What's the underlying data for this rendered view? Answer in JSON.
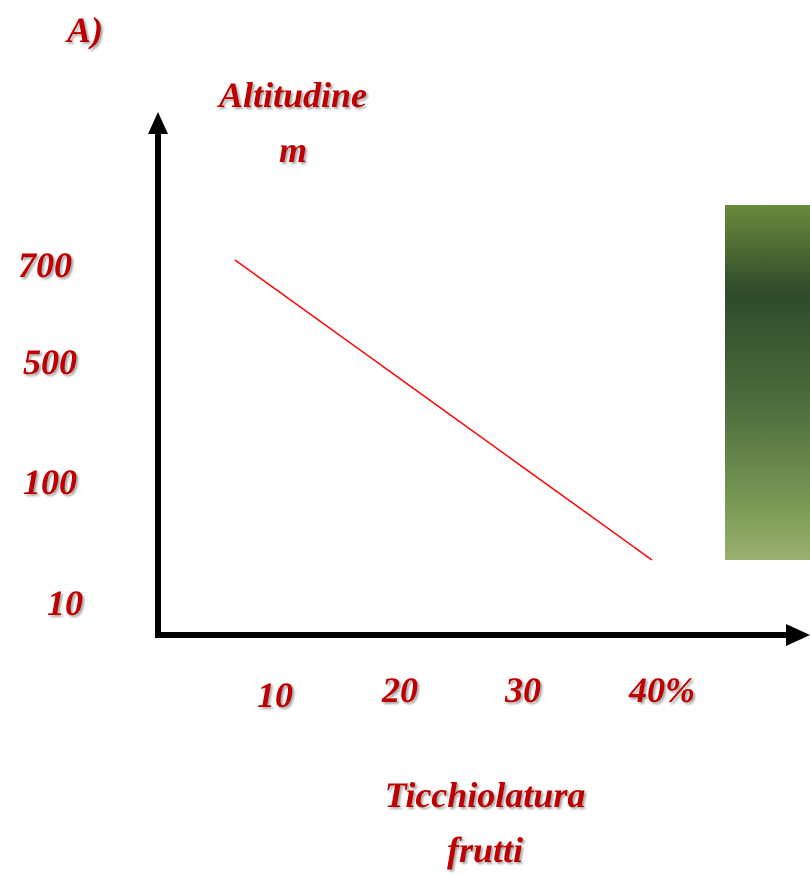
{
  "panel_label": "A)",
  "y_axis": {
    "title": [
      "Altitudine",
      "m"
    ],
    "labels": [
      "700",
      "500",
      "100",
      "10"
    ]
  },
  "x_axis": {
    "labels": [
      "10",
      "20",
      "30",
      "40%"
    ],
    "title": [
      "Ticchiolatura",
      "frutti"
    ]
  }
}
